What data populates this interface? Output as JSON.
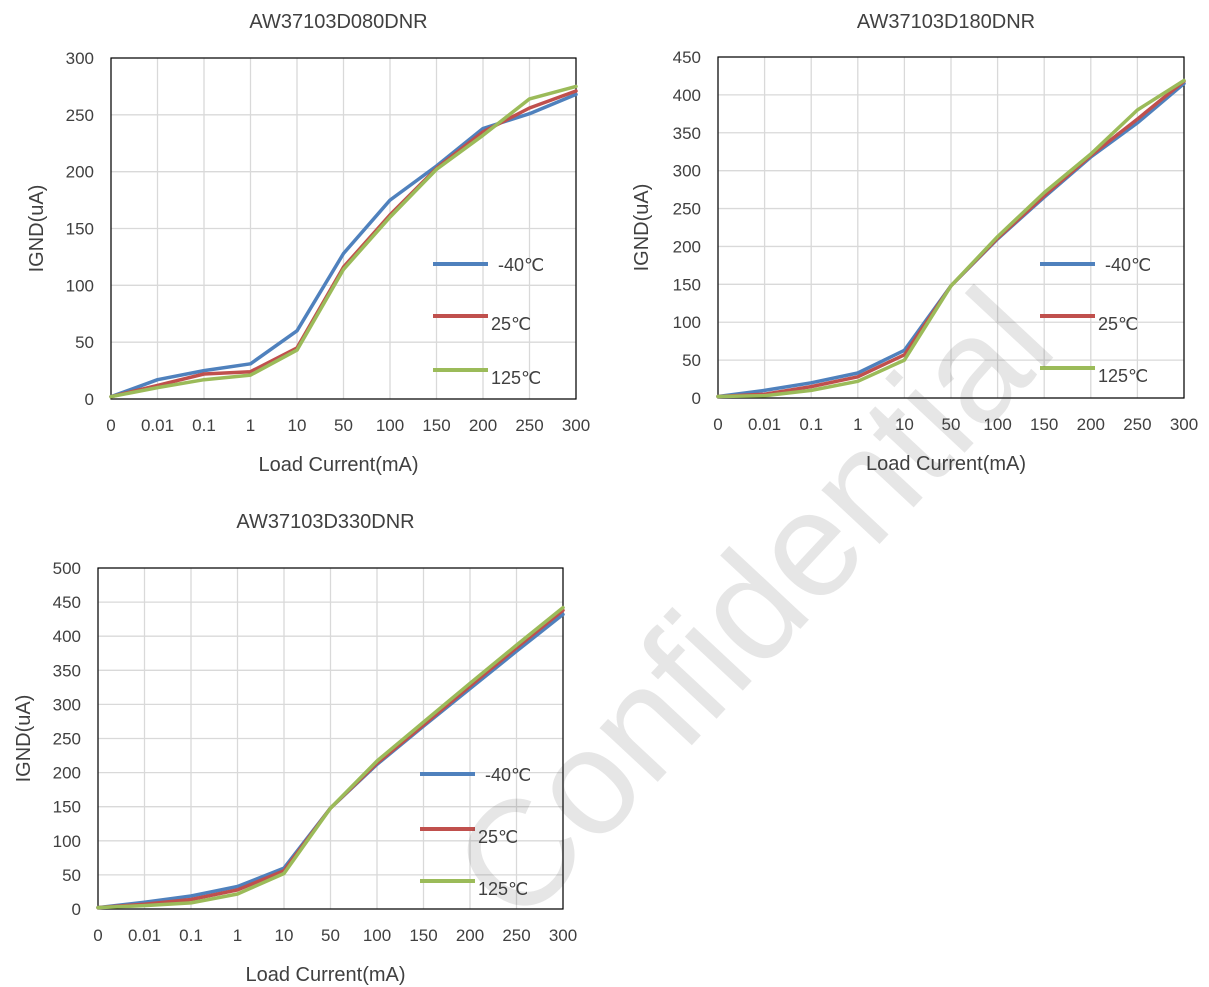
{
  "chart_data": [
    {
      "type": "line",
      "title": "AW37103D080DNR",
      "xlabel": "Load Current(mA)",
      "ylabel": "IGND(uA)",
      "categories": [
        "0",
        "0.01",
        "0.1",
        "1",
        "10",
        "50",
        "100",
        "150",
        "200",
        "250",
        "300"
      ],
      "ylim": [
        0,
        300
      ],
      "yticks": [
        0,
        50,
        100,
        150,
        200,
        250,
        300
      ],
      "grid": true,
      "legend_position": "right",
      "series": [
        {
          "name": "-40℃",
          "color": "#4f81bd",
          "values": [
            2,
            17,
            25,
            31,
            60,
            128,
            175,
            205,
            238,
            251,
            268
          ]
        },
        {
          "name": "25℃",
          "color": "#c0504d",
          "values": [
            2,
            12,
            22,
            24,
            45,
            116,
            162,
            203,
            235,
            256,
            271
          ]
        },
        {
          "name": "125℃",
          "color": "#9bbb59",
          "values": [
            2,
            10,
            17,
            21,
            43,
            114,
            160,
            202,
            232,
            264,
            275
          ]
        }
      ]
    },
    {
      "type": "line",
      "title": "AW37103D180DNR",
      "xlabel": "Load Current(mA)",
      "ylabel": "IGND(uA)",
      "categories": [
        "0",
        "0.01",
        "0.1",
        "1",
        "10",
        "50",
        "100",
        "150",
        "200",
        "250",
        "300"
      ],
      "ylim": [
        0,
        450
      ],
      "yticks": [
        0,
        50,
        100,
        150,
        200,
        250,
        300,
        350,
        400,
        450
      ],
      "grid": true,
      "legend_position": "right",
      "series": [
        {
          "name": "-40℃",
          "color": "#4f81bd",
          "values": [
            2,
            10,
            20,
            33,
            63,
            148,
            210,
            265,
            318,
            363,
            415
          ]
        },
        {
          "name": "25℃",
          "color": "#c0504d",
          "values": [
            2,
            5,
            15,
            28,
            57,
            148,
            211,
            267,
            320,
            368,
            418
          ]
        },
        {
          "name": "125℃",
          "color": "#9bbb59",
          "values": [
            2,
            3,
            10,
            22,
            50,
            148,
            213,
            271,
            322,
            380,
            419
          ]
        }
      ]
    },
    {
      "type": "line",
      "title": "AW37103D330DNR",
      "xlabel": "Load Current(mA)",
      "ylabel": "IGND(uA)",
      "categories": [
        "0",
        "0.01",
        "0.1",
        "1",
        "10",
        "50",
        "100",
        "150",
        "200",
        "250",
        "300"
      ],
      "ylim": [
        0,
        500
      ],
      "yticks": [
        0,
        50,
        100,
        150,
        200,
        250,
        300,
        350,
        400,
        450,
        500
      ],
      "grid": true,
      "legend_position": "right",
      "series": [
        {
          "name": "-40℃",
          "color": "#4f81bd",
          "values": [
            2,
            10,
            19,
            33,
            60,
            148,
            212,
            268,
            323,
            378,
            432
          ]
        },
        {
          "name": "25℃",
          "color": "#c0504d",
          "values": [
            2,
            7,
            14,
            28,
            56,
            148,
            214,
            270,
            327,
            383,
            438
          ]
        },
        {
          "name": "125℃",
          "color": "#9bbb59",
          "values": [
            2,
            5,
            9,
            22,
            52,
            148,
            217,
            274,
            331,
            387,
            442
          ]
        }
      ]
    }
  ],
  "watermark": {
    "text": "Confidential",
    "color": "#ff0000"
  }
}
